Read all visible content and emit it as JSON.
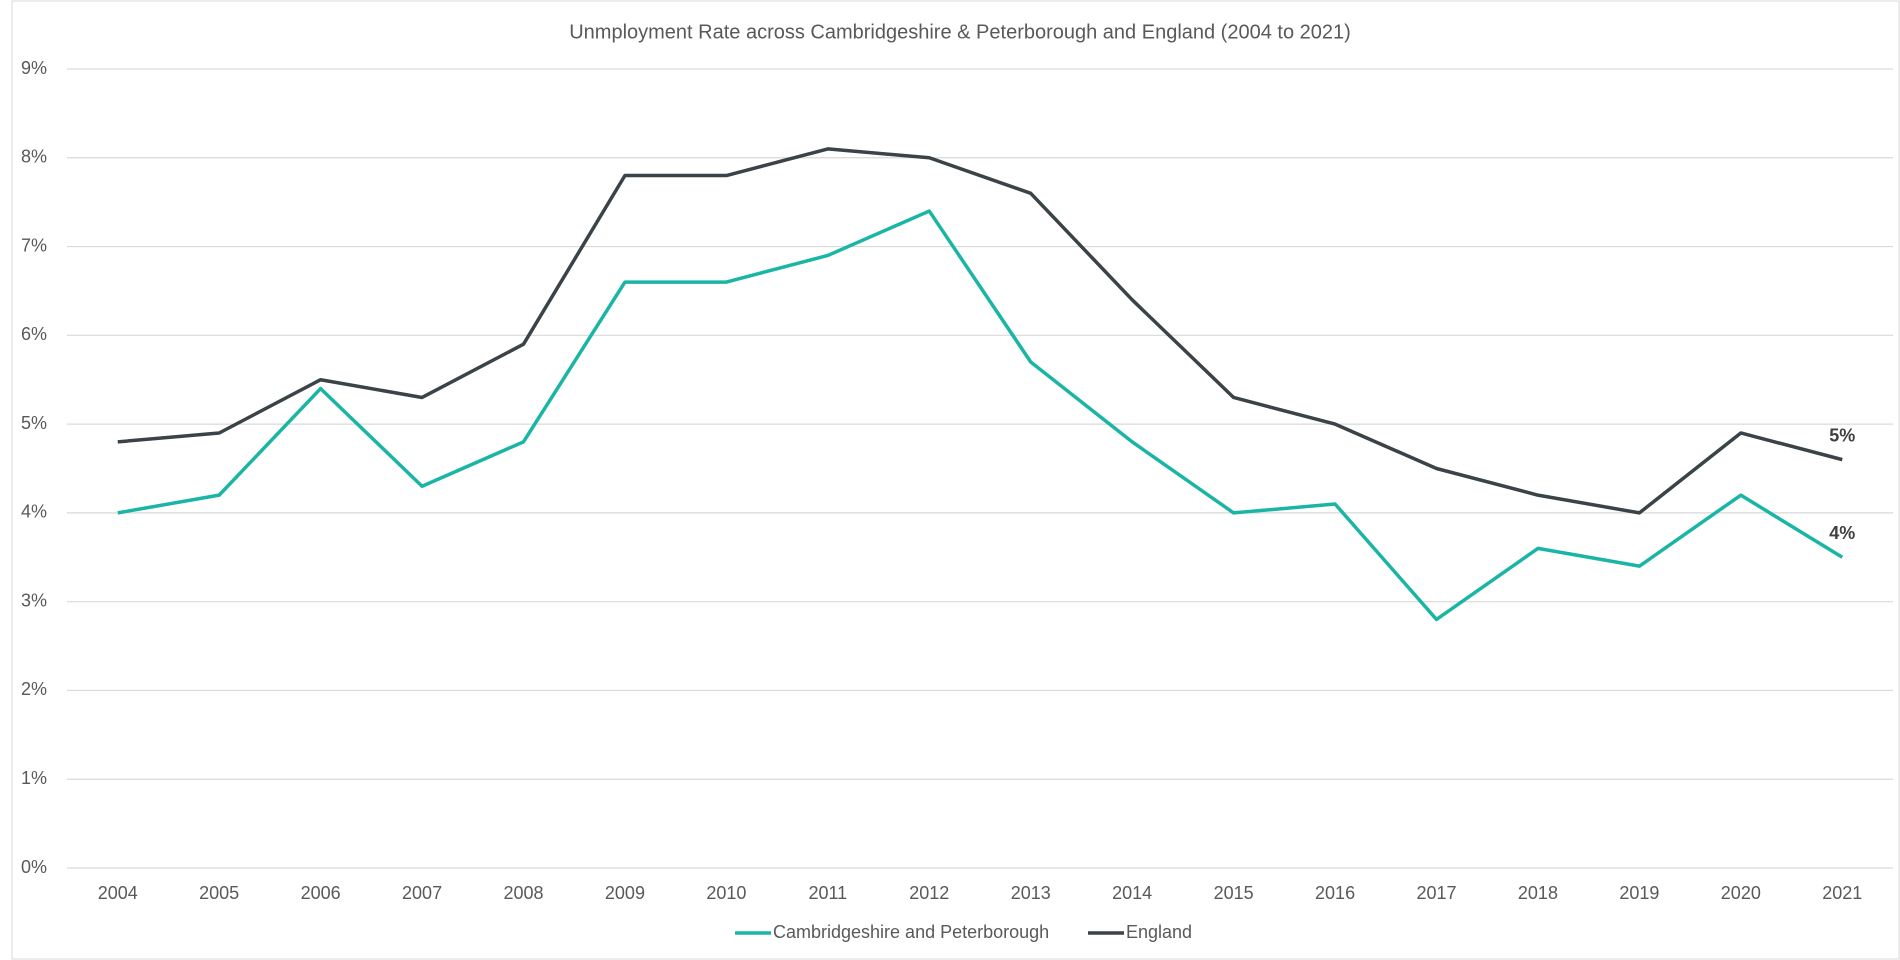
{
  "chart_data": {
    "type": "line",
    "title": "Unmployment Rate across Cambridgeshire & Peterborough and England (2004 to 2021)",
    "categories": [
      "2004",
      "2005",
      "2006",
      "2007",
      "2008",
      "2009",
      "2010",
      "2011",
      "2012",
      "2013",
      "2014",
      "2015",
      "2016",
      "2017",
      "2018",
      "2019",
      "2020",
      "2021"
    ],
    "series": [
      {
        "name": "Cambridgeshire and Peterborough",
        "color": "#1ab5a5",
        "values": [
          4.0,
          4.2,
          5.4,
          4.3,
          4.8,
          6.6,
          6.6,
          6.9,
          7.4,
          5.7,
          4.8,
          4.0,
          4.1,
          2.8,
          3.6,
          3.4,
          4.2,
          3.5
        ],
        "value_labels": [
          null,
          null,
          null,
          null,
          null,
          null,
          null,
          null,
          null,
          null,
          null,
          null,
          null,
          null,
          null,
          null,
          null,
          "4%"
        ]
      },
      {
        "name": "England",
        "color": "#3a4347",
        "values": [
          4.8,
          4.9,
          5.5,
          5.3,
          5.9,
          7.8,
          7.8,
          8.1,
          8.0,
          7.6,
          6.4,
          5.3,
          5.0,
          4.5,
          4.2,
          4.0,
          4.9,
          4.6
        ],
        "value_labels": [
          null,
          null,
          null,
          null,
          null,
          null,
          null,
          null,
          null,
          null,
          null,
          null,
          null,
          null,
          null,
          null,
          null,
          "5%"
        ]
      }
    ],
    "ylim": [
      0,
      9
    ],
    "yticks": [
      {
        "value": 0,
        "label": "0%"
      },
      {
        "value": 1,
        "label": "1%"
      },
      {
        "value": 2,
        "label": "2%"
      },
      {
        "value": 3,
        "label": "3%"
      },
      {
        "value": 4,
        "label": "4%"
      },
      {
        "value": 5,
        "label": "5%"
      },
      {
        "value": 6,
        "label": "6%"
      },
      {
        "value": 7,
        "label": "7%"
      },
      {
        "value": 8,
        "label": "8%"
      },
      {
        "value": 9,
        "label": "9%"
      }
    ],
    "grid": true,
    "legend": "bottom"
  }
}
